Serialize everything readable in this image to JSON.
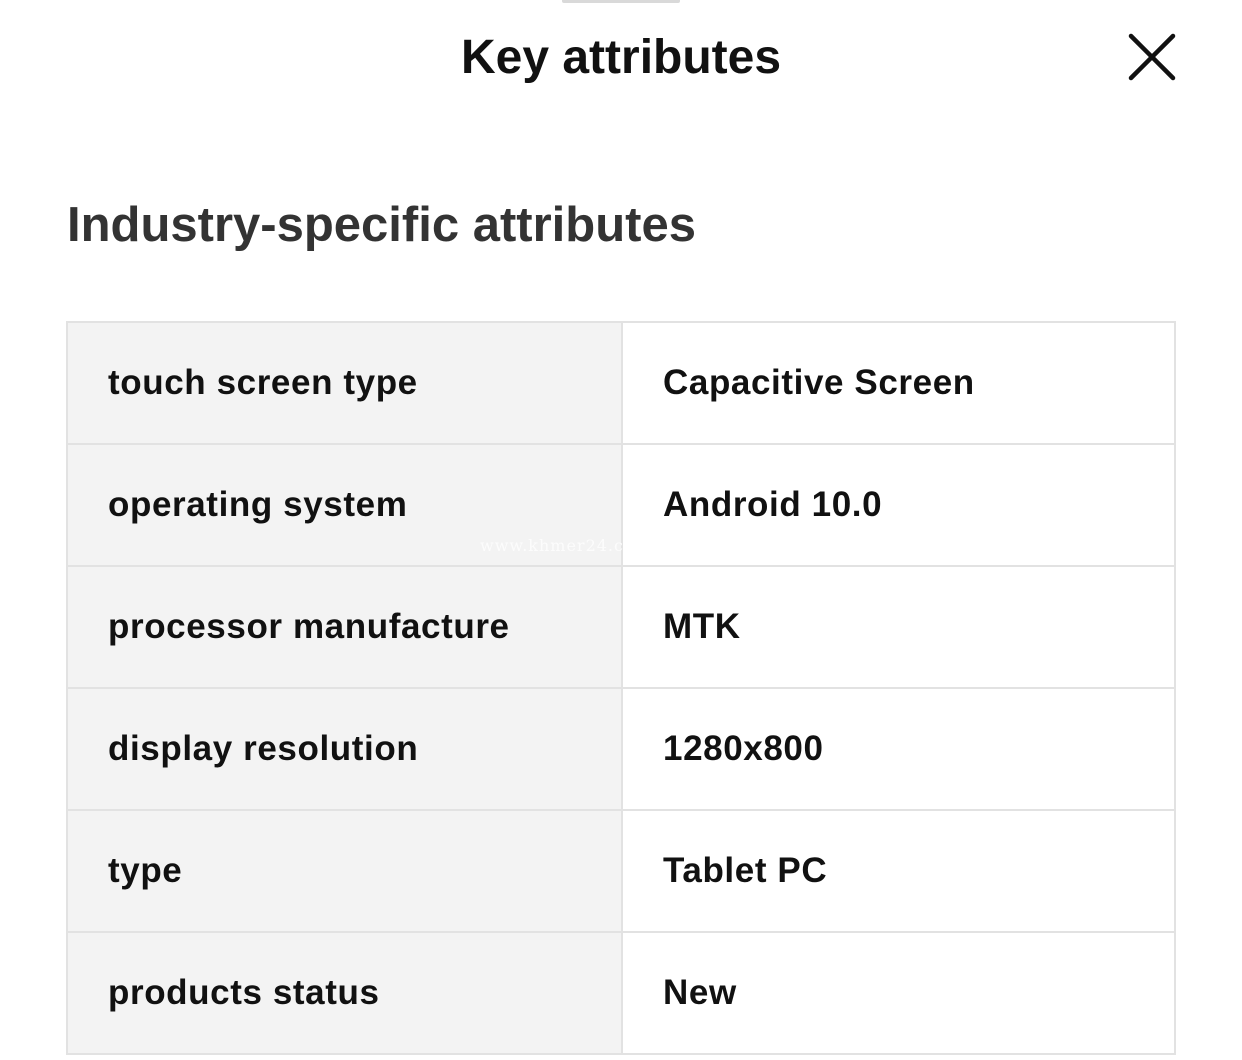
{
  "header": {
    "title": "Key attributes",
    "close_icon": "close-icon"
  },
  "section": {
    "title": "Industry-specific attributes"
  },
  "attributes": [
    {
      "name": "touch screen type",
      "value": "Capacitive Screen"
    },
    {
      "name": "operating system",
      "value": "Android 10.0"
    },
    {
      "name": "processor manufacture",
      "value": "MTK"
    },
    {
      "name": "display resolution",
      "value": "1280x800"
    },
    {
      "name": "type",
      "value": "Tablet PC"
    },
    {
      "name": "products status",
      "value": "New"
    }
  ],
  "watermark": "www.khmer24.c",
  "colors": {
    "name_cell_bg": "#f3f3f3",
    "border": "#e2e2e2",
    "section_title": "#333333"
  }
}
